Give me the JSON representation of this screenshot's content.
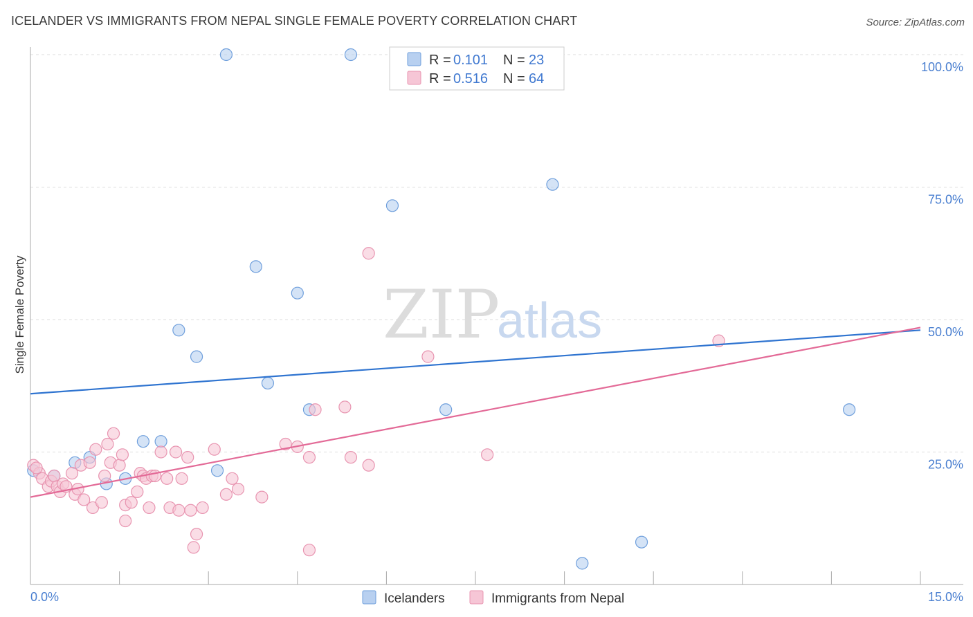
{
  "title": "ICELANDER VS IMMIGRANTS FROM NEPAL SINGLE FEMALE POVERTY CORRELATION CHART",
  "source": "Source: ZipAtlas.com",
  "watermark": {
    "zip": "ZIP",
    "atlas": "atlas"
  },
  "colors": {
    "blue_fill": "#b8d0f0",
    "blue_stroke": "#6f9fdc",
    "blue_line": "#2f74d0",
    "pink_fill": "#f6c6d6",
    "pink_stroke": "#e894b0",
    "pink_line": "#e36a97",
    "grid": "#dddddd",
    "axis": "#aaaaaa"
  },
  "legend": {
    "rows": [
      {
        "r_label": "R =",
        "r_value": "0.101",
        "n_label": "N =",
        "n_value": "23"
      },
      {
        "r_label": "R =",
        "r_value": "0.516",
        "n_label": "N =",
        "n_value": "64"
      }
    ]
  },
  "chart_data": {
    "type": "scatter",
    "title": "ICELANDER VS IMMIGRANTS FROM NEPAL SINGLE FEMALE POVERTY CORRELATION CHART",
    "xlabel": "",
    "ylabel": "Single Female Poverty",
    "xlim": [
      0,
      15
    ],
    "ylim": [
      0,
      100
    ],
    "x_tick_labels": [
      "0.0%",
      "15.0%"
    ],
    "y_ticks": [
      25,
      50,
      75,
      100
    ],
    "y_tick_labels": [
      "25.0%",
      "50.0%",
      "75.0%",
      "100.0%"
    ],
    "series": [
      {
        "name": "Icelanders",
        "color": "blue",
        "trend": {
          "x0": 0,
          "y0": 36,
          "x1": 15,
          "y1": 48.0
        },
        "points": [
          [
            0.05,
            21.5
          ],
          [
            0.4,
            20.5
          ],
          [
            0.75,
            23
          ],
          [
            1.0,
            24
          ],
          [
            1.28,
            19
          ],
          [
            1.6,
            20
          ],
          [
            1.9,
            27
          ],
          [
            2.2,
            27
          ],
          [
            2.5,
            48
          ],
          [
            2.8,
            43
          ],
          [
            3.15,
            21.5
          ],
          [
            3.3,
            100
          ],
          [
            3.8,
            60
          ],
          [
            4.0,
            38
          ],
          [
            4.5,
            55
          ],
          [
            4.7,
            33
          ],
          [
            5.4,
            100
          ],
          [
            6.1,
            71.5
          ],
          [
            7.0,
            33
          ],
          [
            8.8,
            75.5
          ],
          [
            9.3,
            4
          ],
          [
            10.3,
            8
          ],
          [
            13.8,
            33
          ]
        ]
      },
      {
        "name": "Immigrants from Nepal",
        "color": "pink",
        "trend": {
          "x0": 0,
          "y0": 16.5,
          "x1": 15,
          "y1": 48.5
        },
        "points": [
          [
            0.05,
            22.5
          ],
          [
            0.15,
            21
          ],
          [
            0.2,
            20
          ],
          [
            0.3,
            18.5
          ],
          [
            0.35,
            19.5
          ],
          [
            0.4,
            20.5
          ],
          [
            0.45,
            18.5
          ],
          [
            0.5,
            17.5
          ],
          [
            0.55,
            19
          ],
          [
            0.6,
            18.5
          ],
          [
            0.7,
            21
          ],
          [
            0.75,
            17
          ],
          [
            0.8,
            18
          ],
          [
            0.85,
            22.5
          ],
          [
            0.9,
            16
          ],
          [
            1.0,
            23
          ],
          [
            1.05,
            14.5
          ],
          [
            1.1,
            25.5
          ],
          [
            1.2,
            15.5
          ],
          [
            1.25,
            20.5
          ],
          [
            1.3,
            26.5
          ],
          [
            1.35,
            23
          ],
          [
            1.4,
            28.5
          ],
          [
            1.5,
            22.5
          ],
          [
            1.55,
            24.5
          ],
          [
            1.6,
            15
          ],
          [
            1.6,
            12
          ],
          [
            1.7,
            15.5
          ],
          [
            1.8,
            17.5
          ],
          [
            1.85,
            21
          ],
          [
            1.9,
            20.5
          ],
          [
            1.95,
            20
          ],
          [
            2.0,
            14.5
          ],
          [
            2.05,
            20.5
          ],
          [
            2.1,
            20.5
          ],
          [
            2.2,
            25
          ],
          [
            2.3,
            20
          ],
          [
            2.35,
            14.5
          ],
          [
            2.45,
            25
          ],
          [
            2.5,
            14
          ],
          [
            2.55,
            20
          ],
          [
            2.65,
            24
          ],
          [
            2.7,
            14
          ],
          [
            2.75,
            7
          ],
          [
            2.8,
            9.5
          ],
          [
            2.9,
            14.5
          ],
          [
            3.1,
            25.5
          ],
          [
            3.3,
            17
          ],
          [
            3.4,
            20
          ],
          [
            3.5,
            18
          ],
          [
            3.9,
            16.5
          ],
          [
            4.3,
            26.5
          ],
          [
            4.5,
            26
          ],
          [
            4.7,
            24
          ],
          [
            4.7,
            6.5
          ],
          [
            4.8,
            33
          ],
          [
            5.3,
            33.5
          ],
          [
            5.4,
            24
          ],
          [
            5.7,
            22.5
          ],
          [
            5.7,
            62.5
          ],
          [
            6.7,
            43
          ],
          [
            7.7,
            24.5
          ],
          [
            11.6,
            46
          ],
          [
            0.1,
            22
          ]
        ]
      }
    ]
  },
  "bottom_legend": [
    {
      "label": "Icelanders",
      "color": "blue"
    },
    {
      "label": "Immigrants from Nepal",
      "color": "pink"
    }
  ]
}
